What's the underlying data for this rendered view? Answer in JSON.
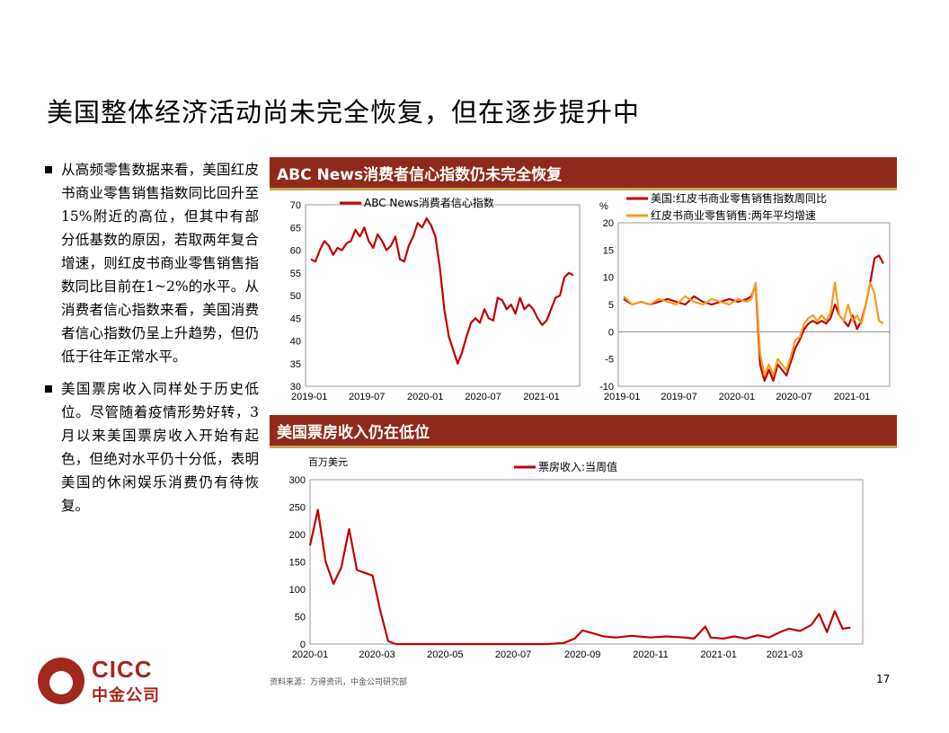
{
  "page": {
    "title": "美国整体经济活动尚未完全恢复，但在逐步提升中",
    "bullets": [
      "从高频零售数据来看，美国红皮书商业零售销售指数同比回升至15%附近的高位，但其中有部分低基数的原因，若取两年复合增速，则红皮书商业零售销售指数同比目前在1~2%的水平。从消费者信心指数来看，美国消费者信心指数仍呈上升趋势，但仍低于往年正常水平。",
      "美国票房收入同样处于历史低位。尽管随着疫情形势好转，3月以来美国票房收入开始有起色，但绝对水平仍十分低，表明美国的休闲娱乐消费仍有待恢复。"
    ],
    "banner1": "ABC News消费者信心指数仍未完全恢复",
    "banner2": "美国票房收入仍在低位",
    "source": "资料来源：万得资讯，中金公司研究部",
    "page_number": "17",
    "logo_en": "CICC",
    "logo_cn": "中金公司"
  },
  "colors": {
    "red": "#c00000",
    "orange": "#f59c1a",
    "banner": "#8f2a1a",
    "brand": "#a3281c"
  },
  "chart_data": [
    {
      "type": "line",
      "ylim": [
        30,
        70
      ],
      "yticks": [
        30,
        35,
        40,
        45,
        50,
        55,
        60,
        65,
        70
      ],
      "xticks": [
        "2019-01",
        "2019-07",
        "2020-01",
        "2020-07",
        "2021-01"
      ],
      "series": [
        {
          "name": "ABC News消费者信心指数",
          "color": "#c00000",
          "x": [
            "2019-01-06",
            "2019-01-20",
            "2019-02-03",
            "2019-02-17",
            "2019-03-03",
            "2019-03-17",
            "2019-03-31",
            "2019-04-14",
            "2019-04-28",
            "2019-05-12",
            "2019-05-26",
            "2019-06-09",
            "2019-06-23",
            "2019-07-07",
            "2019-07-21",
            "2019-08-04",
            "2019-08-18",
            "2019-09-01",
            "2019-09-15",
            "2019-09-29",
            "2019-10-13",
            "2019-10-27",
            "2019-11-10",
            "2019-11-24",
            "2019-12-08",
            "2019-12-22",
            "2020-01-05",
            "2020-01-19",
            "2020-02-02",
            "2020-02-16",
            "2020-03-01",
            "2020-03-15",
            "2020-03-29",
            "2020-04-12",
            "2020-04-26",
            "2020-05-10",
            "2020-05-24",
            "2020-06-07",
            "2020-06-21",
            "2020-07-05",
            "2020-07-19",
            "2020-08-02",
            "2020-08-16",
            "2020-08-30",
            "2020-09-13",
            "2020-09-27",
            "2020-10-11",
            "2020-10-25",
            "2020-11-08",
            "2020-11-22",
            "2020-12-06",
            "2020-12-20",
            "2021-01-03",
            "2021-01-17",
            "2021-01-31",
            "2021-02-14",
            "2021-02-28",
            "2021-03-14",
            "2021-03-28",
            "2021-04-11"
          ],
          "y": [
            58,
            57.5,
            60,
            62,
            61,
            59,
            60.5,
            60,
            61.5,
            62,
            64.5,
            63,
            65,
            62,
            60.5,
            63.5,
            62,
            60,
            61,
            63,
            58,
            57.5,
            61,
            63,
            66,
            65,
            67,
            65.5,
            63,
            56,
            47,
            41,
            38,
            35,
            37.5,
            41,
            44,
            45,
            44,
            47,
            45,
            44.5,
            49.5,
            49,
            47,
            48,
            46,
            49.5,
            47,
            48,
            47,
            45,
            43.5,
            44.5,
            47,
            49.5,
            50,
            54,
            55,
            54.5
          ]
        }
      ]
    },
    {
      "type": "line",
      "ylabel": "%",
      "ylim": [
        -10,
        20
      ],
      "yticks": [
        -10,
        -5,
        0,
        5,
        10,
        15,
        20
      ],
      "xticks": [
        "2019-01",
        "2019-07",
        "2020-01",
        "2020-07",
        "2021-01"
      ],
      "series": [
        {
          "name": "美国:红皮书商业零售销售指数周同比",
          "color": "#c00000",
          "x": [
            "2019-01-06",
            "2019-02-03",
            "2019-03-03",
            "2019-03-31",
            "2019-04-28",
            "2019-05-26",
            "2019-06-23",
            "2019-07-21",
            "2019-08-18",
            "2019-09-15",
            "2019-10-13",
            "2019-11-10",
            "2019-12-08",
            "2020-01-05",
            "2020-02-02",
            "2020-02-16",
            "2020-03-01",
            "2020-03-15",
            "2020-03-29",
            "2020-04-12",
            "2020-04-26",
            "2020-05-10",
            "2020-05-24",
            "2020-06-07",
            "2020-06-21",
            "2020-07-05",
            "2020-07-19",
            "2020-08-02",
            "2020-08-16",
            "2020-08-30",
            "2020-09-13",
            "2020-09-27",
            "2020-10-11",
            "2020-10-25",
            "2020-11-08",
            "2020-11-22",
            "2020-12-06",
            "2020-12-20",
            "2021-01-03",
            "2021-01-17",
            "2021-01-31",
            "2021-02-14",
            "2021-02-28",
            "2021-03-14",
            "2021-03-28",
            "2021-04-11"
          ],
          "y": [
            6,
            5,
            5.5,
            5,
            5.5,
            6,
            5.5,
            5,
            6.5,
            5.5,
            5,
            5.5,
            6,
            5.5,
            6,
            6.5,
            8.5,
            -6,
            -9,
            -7,
            -9,
            -6,
            -7,
            -8,
            -5.5,
            -3,
            -1.5,
            0.5,
            1.5,
            2,
            1.5,
            2,
            1.5,
            2.5,
            5,
            3,
            2,
            1,
            3,
            0.5,
            2,
            5,
            9,
            13.5,
            14,
            12.5
          ]
        },
        {
          "name": "红皮书商业零售销售:两年平均增速",
          "color": "#f59c1a",
          "x": [
            "2019-01-06",
            "2019-02-03",
            "2019-03-03",
            "2019-03-31",
            "2019-04-28",
            "2019-05-26",
            "2019-06-23",
            "2019-07-21",
            "2019-08-18",
            "2019-09-15",
            "2019-10-13",
            "2019-11-10",
            "2019-12-08",
            "2020-01-05",
            "2020-02-02",
            "2020-02-16",
            "2020-03-01",
            "2020-03-15",
            "2020-03-29",
            "2020-04-12",
            "2020-04-26",
            "2020-05-10",
            "2020-05-24",
            "2020-06-07",
            "2020-06-21",
            "2020-07-05",
            "2020-07-19",
            "2020-08-02",
            "2020-08-16",
            "2020-08-30",
            "2020-09-13",
            "2020-09-27",
            "2020-10-11",
            "2020-10-25",
            "2020-11-08",
            "2020-11-22",
            "2020-12-06",
            "2020-12-20",
            "2021-01-03",
            "2021-01-17",
            "2021-01-31",
            "2021-02-14",
            "2021-02-28",
            "2021-03-14",
            "2021-03-28",
            "2021-04-11"
          ],
          "y": [
            6.5,
            5,
            5.5,
            5,
            6,
            5.5,
            5,
            6.5,
            5.5,
            5,
            6,
            5.5,
            5,
            6,
            5.5,
            6,
            9,
            -4,
            -8,
            -6,
            -8,
            -5,
            -6,
            -7,
            -4.5,
            -1.5,
            -1,
            1.5,
            2.5,
            3,
            2,
            3,
            2,
            3.5,
            9,
            3,
            2,
            5,
            2,
            3,
            1.5,
            5,
            9,
            7,
            2,
            1.5
          ]
        }
      ]
    },
    {
      "type": "line",
      "ylabel": "百万美元",
      "ylim": [
        0,
        300
      ],
      "yticks": [
        0,
        50,
        100,
        150,
        200,
        250,
        300
      ],
      "xticks": [
        "2020-01",
        "2020-03",
        "2020-05",
        "2020-07",
        "2020-09",
        "2020-11",
        "2021-01",
        "2021-03"
      ],
      "series": [
        {
          "name": "票房收入:当周值",
          "color": "#c00000",
          "x": [
            "2020-01-01",
            "2020-01-08",
            "2020-01-15",
            "2020-01-22",
            "2020-01-29",
            "2020-02-05",
            "2020-02-12",
            "2020-02-19",
            "2020-02-26",
            "2020-03-04",
            "2020-03-11",
            "2020-03-18",
            "2020-03-25",
            "2020-05-01",
            "2020-07-01",
            "2020-08-01",
            "2020-08-15",
            "2020-08-25",
            "2020-09-01",
            "2020-09-10",
            "2020-09-20",
            "2020-10-01",
            "2020-10-15",
            "2020-11-01",
            "2020-11-15",
            "2020-12-01",
            "2020-12-10",
            "2020-12-20",
            "2020-12-25",
            "2021-01-05",
            "2021-01-15",
            "2021-01-25",
            "2021-02-05",
            "2021-02-15",
            "2021-02-25",
            "2021-03-05",
            "2021-03-15",
            "2021-03-25",
            "2021-04-01",
            "2021-04-08",
            "2021-04-15",
            "2021-04-22",
            "2021-04-29"
          ],
          "y": [
            180,
            245,
            150,
            110,
            140,
            210,
            135,
            130,
            125,
            60,
            5,
            0,
            0,
            0,
            0,
            0,
            2,
            10,
            25,
            20,
            14,
            12,
            15,
            12,
            14,
            12,
            10,
            32,
            12,
            10,
            14,
            10,
            16,
            12,
            22,
            28,
            24,
            35,
            55,
            22,
            60,
            28,
            30
          ]
        }
      ]
    }
  ]
}
